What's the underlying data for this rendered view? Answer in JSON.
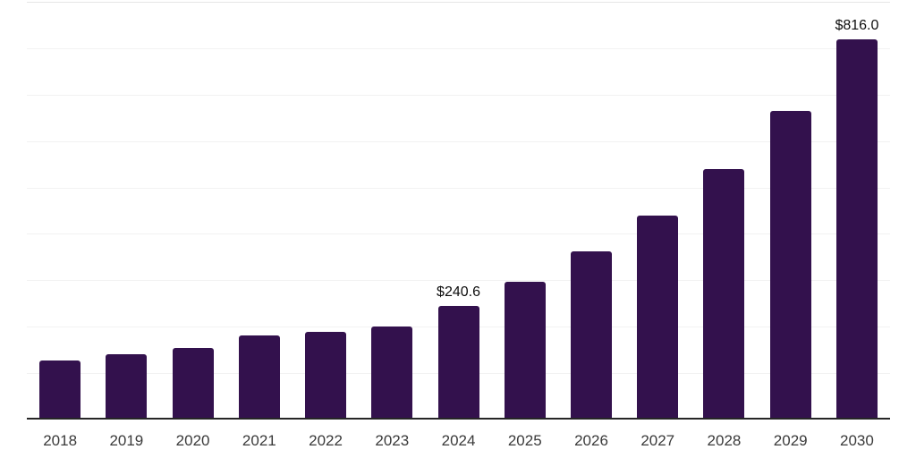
{
  "chart_data": {
    "type": "bar",
    "title": "",
    "xlabel": "",
    "ylabel": "",
    "categories": [
      "2018",
      "2019",
      "2020",
      "2021",
      "2022",
      "2023",
      "2024",
      "2025",
      "2026",
      "2027",
      "2028",
      "2029",
      "2030"
    ],
    "values": [
      123.0,
      136.2,
      150.8,
      176.4,
      184.6,
      197.5,
      240.6,
      293.1,
      358.2,
      435.9,
      536.7,
      661.6,
      816.0
    ],
    "data_labels": {
      "2024": "$240.6",
      "2030": "$816.0"
    },
    "ylim": [
      0,
      900
    ],
    "gridline_interval": 100,
    "grid": "horizontal",
    "legend": "none",
    "colors": {
      "bar": "#33114d",
      "axis_line": "#262626",
      "gridline": "#f2f2f2",
      "top_gridline": "#e6e6e6",
      "tick_label": "#3a3a3a",
      "value_label": "#0d0d0d",
      "background": "#ffffff"
    }
  }
}
